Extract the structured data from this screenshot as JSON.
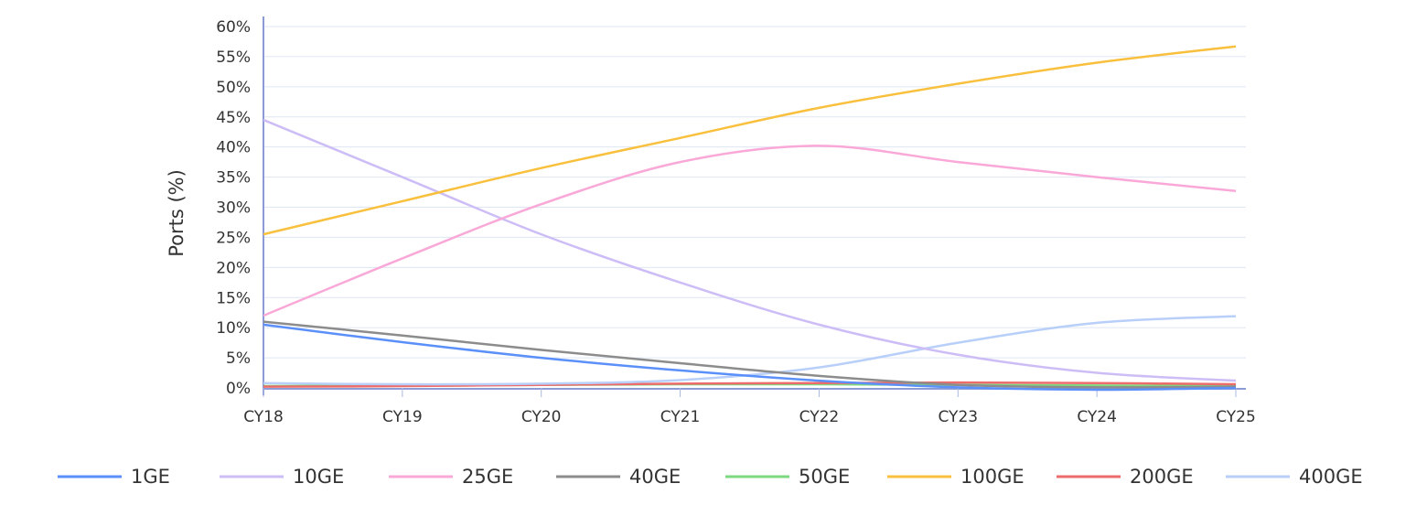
{
  "chart_data": {
    "type": "line",
    "title": "",
    "xlabel": "",
    "ylabel": "Ports (%)",
    "categories": [
      "CY18",
      "CY19",
      "CY20",
      "CY21",
      "CY22",
      "CY23",
      "CY24",
      "CY25"
    ],
    "ylim": [
      0,
      60
    ],
    "yticks": [
      "0%",
      "5%",
      "10%",
      "15%",
      "20%",
      "25%",
      "30%",
      "35%",
      "40%",
      "45%",
      "50%",
      "55%",
      "60%"
    ],
    "grid": true,
    "legend": "bottom",
    "series": [
      {
        "name": "1GE",
        "color": "#5b8ff9",
        "values": [
          10.5,
          7.6,
          5.0,
          2.9,
          1.2,
          0.1,
          -0.3,
          0.0
        ]
      },
      {
        "name": "10GE",
        "color": "#cdbdf7",
        "values": [
          44.5,
          35.0,
          25.5,
          17.5,
          10.5,
          5.5,
          2.5,
          1.2
        ]
      },
      {
        "name": "25GE",
        "color": "#f9a8d8",
        "values": [
          12.0,
          21.5,
          30.5,
          37.5,
          40.2,
          37.5,
          35.0,
          32.7
        ]
      },
      {
        "name": "40GE",
        "color": "#8c8c8c",
        "values": [
          11.0,
          8.7,
          6.3,
          4.1,
          2.0,
          0.5,
          0.1,
          0.2
        ]
      },
      {
        "name": "50GE",
        "color": "#7dd87f",
        "values": [
          0.3,
          0.4,
          0.5,
          0.6,
          0.6,
          0.5,
          0.4,
          0.3
        ]
      },
      {
        "name": "100GE",
        "color": "#f9c03d",
        "values": [
          25.5,
          31.0,
          36.5,
          41.5,
          46.5,
          50.5,
          54.0,
          56.7
        ]
      },
      {
        "name": "200GE",
        "color": "#ee6b6b",
        "values": [
          0.2,
          0.3,
          0.5,
          0.7,
          0.8,
          0.9,
          0.8,
          0.6
        ]
      },
      {
        "name": "400GE",
        "color": "#b8cff9",
        "values": [
          0.8,
          0.6,
          0.7,
          1.3,
          3.4,
          7.5,
          10.8,
          11.9
        ]
      }
    ]
  }
}
